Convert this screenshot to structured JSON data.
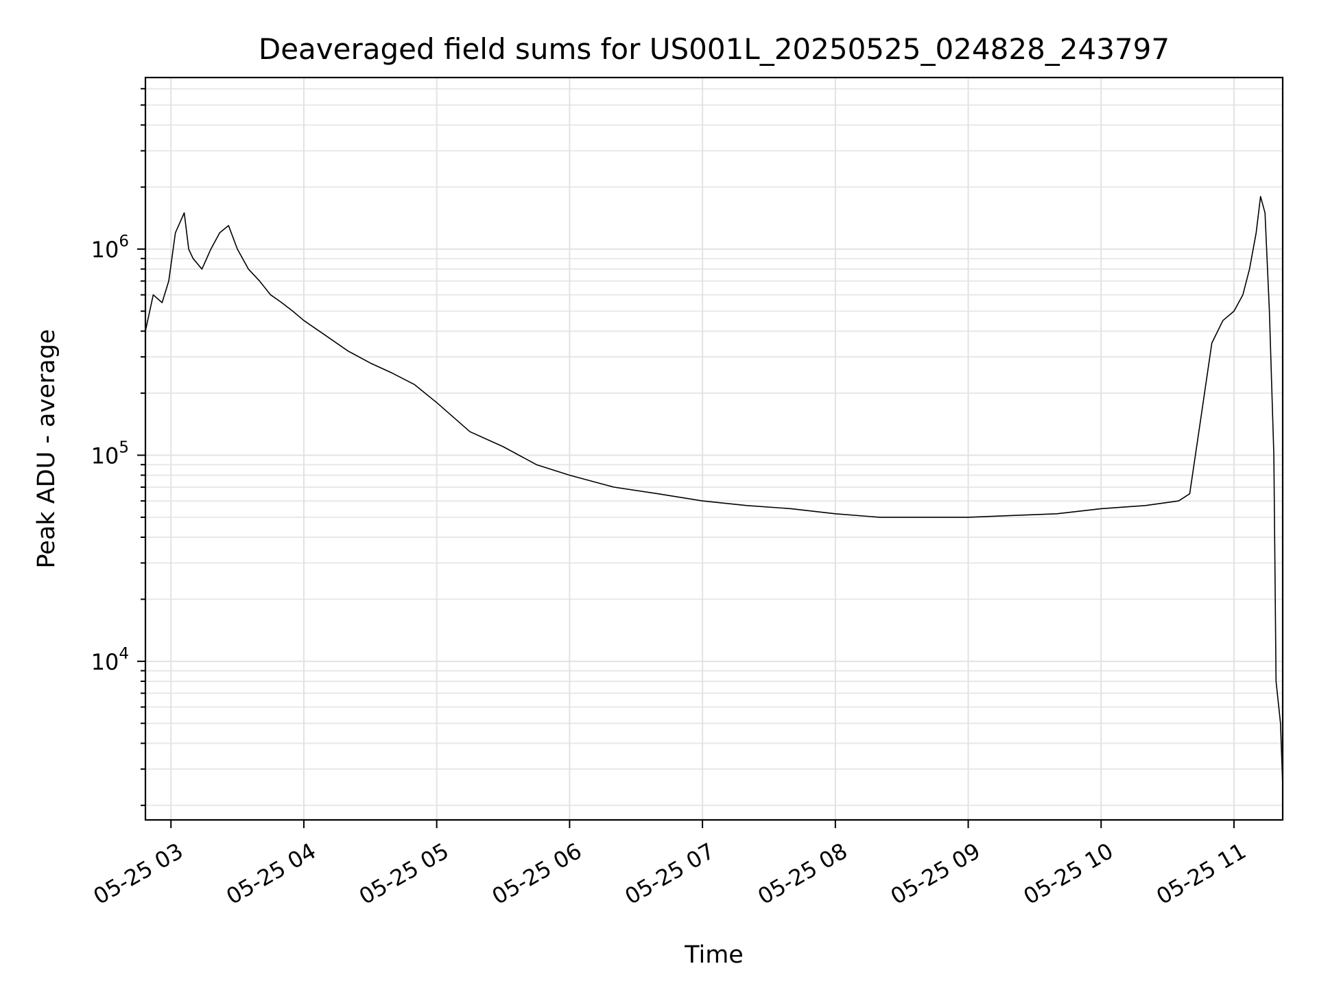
{
  "chart_data": {
    "type": "line",
    "title": "Deaveraged field sums for US001L_20250525_024828_243797",
    "xlabel": "Time",
    "ylabel": "Peak ADU - average",
    "yscale": "log",
    "grid": true,
    "xlim": [
      "2025-05-25T02:48:28",
      "2025-05-25T11:22:00"
    ],
    "ylim": [
      1700,
      6800000
    ],
    "x_ticks": [
      {
        "value": "2025-05-25T03:00:00",
        "label": "05-25 03"
      },
      {
        "value": "2025-05-25T04:00:00",
        "label": "05-25 04"
      },
      {
        "value": "2025-05-25T05:00:00",
        "label": "05-25 05"
      },
      {
        "value": "2025-05-25T06:00:00",
        "label": "05-25 06"
      },
      {
        "value": "2025-05-25T07:00:00",
        "label": "05-25 07"
      },
      {
        "value": "2025-05-25T08:00:00",
        "label": "05-25 08"
      },
      {
        "value": "2025-05-25T09:00:00",
        "label": "05-25 09"
      },
      {
        "value": "2025-05-25T10:00:00",
        "label": "05-25 10"
      },
      {
        "value": "2025-05-25T11:00:00",
        "label": "05-25 11"
      }
    ],
    "y_ticks": [
      {
        "value": 10000,
        "base": "10",
        "exp": "4"
      },
      {
        "value": 100000,
        "base": "10",
        "exp": "5"
      },
      {
        "value": 1000000,
        "base": "10",
        "exp": "6"
      }
    ],
    "series": [
      {
        "color": "#000000",
        "x": [
          "2025-05-25T02:48:28",
          "2025-05-25T02:52:00",
          "2025-05-25T02:56:00",
          "2025-05-25T02:59:00",
          "2025-05-25T03:02:00",
          "2025-05-25T03:06:00",
          "2025-05-25T03:08:00",
          "2025-05-25T03:10:00",
          "2025-05-25T03:14:00",
          "2025-05-25T03:18:00",
          "2025-05-25T03:22:00",
          "2025-05-25T03:26:00",
          "2025-05-25T03:30:00",
          "2025-05-25T03:35:00",
          "2025-05-25T03:40:00",
          "2025-05-25T03:45:00",
          "2025-05-25T03:50:00",
          "2025-05-25T03:55:00",
          "2025-05-25T04:00:00",
          "2025-05-25T04:10:00",
          "2025-05-25T04:20:00",
          "2025-05-25T04:30:00",
          "2025-05-25T04:40:00",
          "2025-05-25T04:50:00",
          "2025-05-25T05:00:00",
          "2025-05-25T05:15:00",
          "2025-05-25T05:30:00",
          "2025-05-25T05:45:00",
          "2025-05-25T06:00:00",
          "2025-05-25T06:20:00",
          "2025-05-25T06:40:00",
          "2025-05-25T07:00:00",
          "2025-05-25T07:20:00",
          "2025-05-25T07:40:00",
          "2025-05-25T08:00:00",
          "2025-05-25T08:20:00",
          "2025-05-25T08:40:00",
          "2025-05-25T09:00:00",
          "2025-05-25T09:20:00",
          "2025-05-25T09:40:00",
          "2025-05-25T10:00:00",
          "2025-05-25T10:20:00",
          "2025-05-25T10:35:00",
          "2025-05-25T10:40:00",
          "2025-05-25T10:45:00",
          "2025-05-25T10:50:00",
          "2025-05-25T10:55:00",
          "2025-05-25T11:00:00",
          "2025-05-25T11:04:00",
          "2025-05-25T11:07:00",
          "2025-05-25T11:10:00",
          "2025-05-25T11:12:00",
          "2025-05-25T11:14:00",
          "2025-05-25T11:16:00",
          "2025-05-25T11:18:00",
          "2025-05-25T11:19:00",
          "2025-05-25T11:21:00",
          "2025-05-25T11:22:00"
        ],
        "y": [
          400000,
          600000,
          550000,
          700000,
          1200000,
          1500000,
          1000000,
          900000,
          800000,
          1000000,
          1200000,
          1300000,
          1000000,
          800000,
          700000,
          600000,
          550000,
          500000,
          450000,
          380000,
          320000,
          280000,
          250000,
          220000,
          180000,
          130000,
          110000,
          90000,
          80000,
          70000,
          65000,
          60000,
          57000,
          55000,
          52000,
          50000,
          50000,
          50000,
          51000,
          52000,
          55000,
          57000,
          60000,
          65000,
          150000,
          350000,
          450000,
          500000,
          600000,
          800000,
          1200000,
          1800000,
          1500000,
          500000,
          100000,
          8000,
          5000,
          2500
        ]
      }
    ]
  }
}
